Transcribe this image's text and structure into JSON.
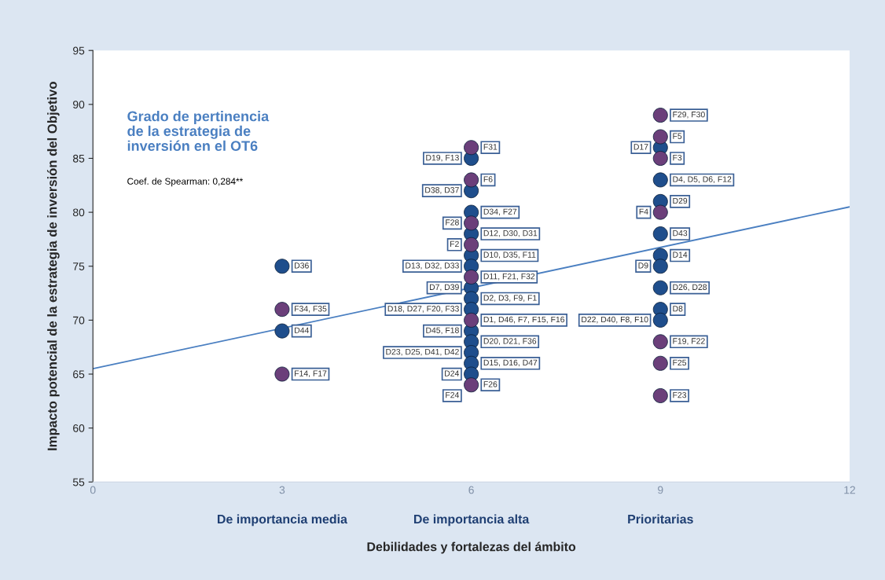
{
  "chart_data": {
    "type": "scatter",
    "xlabel": "Debilidades y fortalezas del ámbito",
    "ylabel": "Impacto potencial de la estrategia de inversión del Objetivo",
    "xlim": [
      0,
      12
    ],
    "xticks": [
      0,
      3,
      6,
      9,
      12
    ],
    "ylim": [
      55,
      95
    ],
    "yticks": [
      55,
      60,
      65,
      70,
      75,
      80,
      85,
      90,
      95
    ],
    "grid": false,
    "marker": "circle",
    "series": [
      {
        "color": "#1f4e8c",
        "x": [
          3,
          3,
          6,
          6,
          6,
          6,
          6,
          6,
          6,
          6,
          6,
          6,
          6,
          6,
          6,
          6,
          9,
          9,
          9,
          9,
          9,
          9,
          9,
          9,
          9
        ],
        "values": [
          75,
          69,
          85,
          82,
          80,
          78,
          76,
          75,
          73,
          72,
          71,
          69,
          68,
          67,
          66,
          65,
          86,
          83,
          81,
          78,
          76,
          75,
          73,
          71,
          70
        ]
      },
      {
        "color": "#6b3f7a",
        "x": [
          3,
          3,
          6,
          6,
          6,
          6,
          6,
          6,
          6,
          9,
          9,
          9,
          9,
          9,
          9,
          9
        ],
        "values": [
          71,
          65,
          86,
          83,
          79,
          77,
          74,
          70,
          64,
          89,
          87,
          85,
          80,
          68,
          66,
          63
        ]
      },
      {
        "type": "line",
        "color": "#4a7fc1",
        "line_style": "solid",
        "marker": "none",
        "x": [
          0,
          12
        ],
        "values": [
          65.5,
          80.5
        ]
      }
    ],
    "annotations": [
      "Grado de pertinencia\nde la estrategia de\ninversión en el OT6",
      "Coef. de Spearman: 0,284**",
      "De importancia media",
      "De importancia alta",
      "Prioritarias",
      {
        "text": "D36",
        "x": 3,
        "y": 75
      },
      {
        "text": "F34, F35",
        "x": 3,
        "y": 71
      },
      {
        "text": "D44",
        "x": 3,
        "y": 69
      },
      {
        "text": "F14, F17",
        "x": 3,
        "y": 65
      },
      {
        "text": "F31",
        "x": 6,
        "y": 86
      },
      {
        "text": "D19, F13",
        "x": 6,
        "y": 85
      },
      {
        "text": "F6",
        "x": 6,
        "y": 83
      },
      {
        "text": "D38, D37",
        "x": 6,
        "y": 82
      },
      {
        "text": "D34, F27",
        "x": 6,
        "y": 80
      },
      {
        "text": "F28",
        "x": 6,
        "y": 79
      },
      {
        "text": "D12, D30, D31",
        "x": 6,
        "y": 78
      },
      {
        "text": "F2",
        "x": 6,
        "y": 77
      },
      {
        "text": "D10, D35, F11",
        "x": 6,
        "y": 76
      },
      {
        "text": "D13, D32, D33",
        "x": 6,
        "y": 75
      },
      {
        "text": "D11, F21, F32",
        "x": 6,
        "y": 74
      },
      {
        "text": "D7, D39",
        "x": 6,
        "y": 73
      },
      {
        "text": "D2, D3, F9, F1",
        "x": 6,
        "y": 72
      },
      {
        "text": "D18, D27, F20, F33",
        "x": 6,
        "y": 71
      },
      {
        "text": "D1, D46, F7, F15, F16",
        "x": 6,
        "y": 70
      },
      {
        "text": "D45, F18",
        "x": 6,
        "y": 69
      },
      {
        "text": "D20, D21, F36",
        "x": 6,
        "y": 68
      },
      {
        "text": "D23, D25, D41, D42",
        "x": 6,
        "y": 67
      },
      {
        "text": "D15, D16, D47",
        "x": 6,
        "y": 66
      },
      {
        "text": "D24",
        "x": 6,
        "y": 65
      },
      {
        "text": "F26",
        "x": 6,
        "y": 64
      },
      {
        "text": "F24",
        "x": 6,
        "y": 63
      },
      {
        "text": "F29, F30",
        "x": 9,
        "y": 89
      },
      {
        "text": "F5",
        "x": 9,
        "y": 87
      },
      {
        "text": "D17",
        "x": 9,
        "y": 86
      },
      {
        "text": "F3",
        "x": 9,
        "y": 85
      },
      {
        "text": "D4, D5, D6, F12",
        "x": 9,
        "y": 83
      },
      {
        "text": "D29",
        "x": 9,
        "y": 81
      },
      {
        "text": "F4",
        "x": 9,
        "y": 80
      },
      {
        "text": "D43",
        "x": 9,
        "y": 78
      },
      {
        "text": "D14",
        "x": 9,
        "y": 76
      },
      {
        "text": "D9",
        "x": 9,
        "y": 75
      },
      {
        "text": "D26, D28",
        "x": 9,
        "y": 73
      },
      {
        "text": "D8",
        "x": 9,
        "y": 71
      },
      {
        "text": "D22, D40, F8, F10",
        "x": 9,
        "y": 70
      },
      {
        "text": "F19, F22",
        "x": 9,
        "y": 68
      },
      {
        "text": "F25",
        "x": 9,
        "y": 66
      },
      {
        "text": "F23",
        "x": 9,
        "y": 63
      }
    ]
  }
}
